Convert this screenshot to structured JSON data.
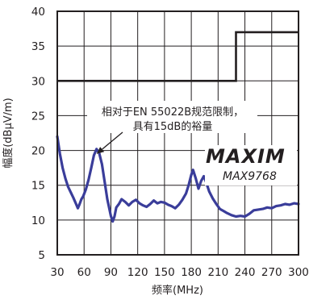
{
  "chart_data": {
    "type": "line",
    "xlabel": "频率(MHz)",
    "ylabel": "幅度(dBµV/m)",
    "xlim": [
      30,
      300
    ],
    "ylim": [
      5,
      40
    ],
    "x_ticks": [
      30,
      60,
      90,
      120,
      150,
      180,
      210,
      240,
      270,
      300
    ],
    "y_ticks": [
      5,
      10,
      15,
      20,
      25,
      30,
      35,
      40
    ],
    "grid": true,
    "annotation": {
      "lines": [
        "相对于EN 55022B规范限制，",
        "具有15dB的裕量"
      ],
      "points_to": {
        "x": 74,
        "y": 19.5
      }
    },
    "logo_text": "MAXIM",
    "part_number": "MAX9768",
    "limit_series": {
      "color": "#231f20",
      "points": [
        [
          30,
          30
        ],
        [
          230,
          30
        ],
        [
          230,
          37
        ],
        [
          300,
          37
        ]
      ]
    },
    "measured_series": {
      "color": "#3a3d9a",
      "points": [
        [
          30,
          22.0
        ],
        [
          33,
          19.5
        ],
        [
          36,
          17.5
        ],
        [
          39,
          16.0
        ],
        [
          42,
          14.8
        ],
        [
          45,
          14.0
        ],
        [
          48,
          13.2
        ],
        [
          51,
          12.3
        ],
        [
          53,
          11.7
        ],
        [
          55,
          12.3
        ],
        [
          57,
          13.0
        ],
        [
          59,
          13.4
        ],
        [
          62,
          14.4
        ],
        [
          65,
          15.8
        ],
        [
          68,
          17.5
        ],
        [
          71,
          19.3
        ],
        [
          74,
          20.2
        ],
        [
          77,
          19.6
        ],
        [
          80,
          18.0
        ],
        [
          83,
          15.5
        ],
        [
          86,
          13.0
        ],
        [
          88,
          11.8
        ],
        [
          90,
          10.6
        ],
        [
          92,
          9.8
        ],
        [
          94,
          10.5
        ],
        [
          96,
          11.8
        ],
        [
          99,
          12.3
        ],
        [
          102,
          13.0
        ],
        [
          106,
          12.6
        ],
        [
          110,
          12.1
        ],
        [
          114,
          12.6
        ],
        [
          118,
          12.9
        ],
        [
          122,
          12.4
        ],
        [
          126,
          12.1
        ],
        [
          130,
          11.9
        ],
        [
          134,
          12.3
        ],
        [
          138,
          12.8
        ],
        [
          142,
          12.4
        ],
        [
          146,
          12.6
        ],
        [
          150,
          12.5
        ],
        [
          154,
          12.2
        ],
        [
          158,
          12.0
        ],
        [
          162,
          11.7
        ],
        [
          166,
          12.2
        ],
        [
          170,
          12.9
        ],
        [
          174,
          13.8
        ],
        [
          177,
          15.0
        ],
        [
          180,
          16.5
        ],
        [
          182,
          17.2
        ],
        [
          185,
          16.0
        ],
        [
          188,
          14.5
        ],
        [
          191,
          15.6
        ],
        [
          194,
          16.3
        ],
        [
          197,
          15.3
        ],
        [
          200,
          14.1
        ],
        [
          204,
          13.1
        ],
        [
          208,
          12.3
        ],
        [
          212,
          11.6
        ],
        [
          216,
          11.3
        ],
        [
          220,
          11.0
        ],
        [
          225,
          10.7
        ],
        [
          230,
          10.5
        ],
        [
          235,
          10.6
        ],
        [
          240,
          10.5
        ],
        [
          245,
          10.9
        ],
        [
          250,
          11.4
        ],
        [
          255,
          11.5
        ],
        [
          260,
          11.6
        ],
        [
          265,
          11.8
        ],
        [
          270,
          11.7
        ],
        [
          275,
          12.0
        ],
        [
          280,
          12.1
        ],
        [
          285,
          12.3
        ],
        [
          290,
          12.2
        ],
        [
          295,
          12.4
        ],
        [
          300,
          12.3
        ]
      ]
    }
  }
}
